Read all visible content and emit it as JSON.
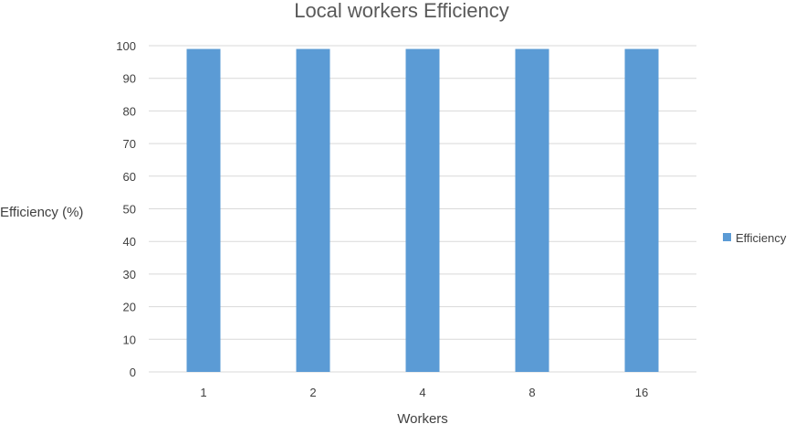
{
  "chart_data": {
    "type": "bar",
    "title": "Local workers Efficiency",
    "xlabel": "Workers",
    "ylabel": "Efficiency (%)",
    "categories": [
      "1",
      "2",
      "4",
      "8",
      "16"
    ],
    "series": [
      {
        "name": "Efficiency",
        "values": [
          99,
          99,
          99,
          99,
          99
        ],
        "color": "#5b9bd5"
      }
    ],
    "ylim": [
      0,
      100
    ],
    "yticks": [
      0,
      10,
      20,
      30,
      40,
      50,
      60,
      70,
      80,
      90,
      100
    ],
    "grid": true,
    "legend_position": "right"
  }
}
